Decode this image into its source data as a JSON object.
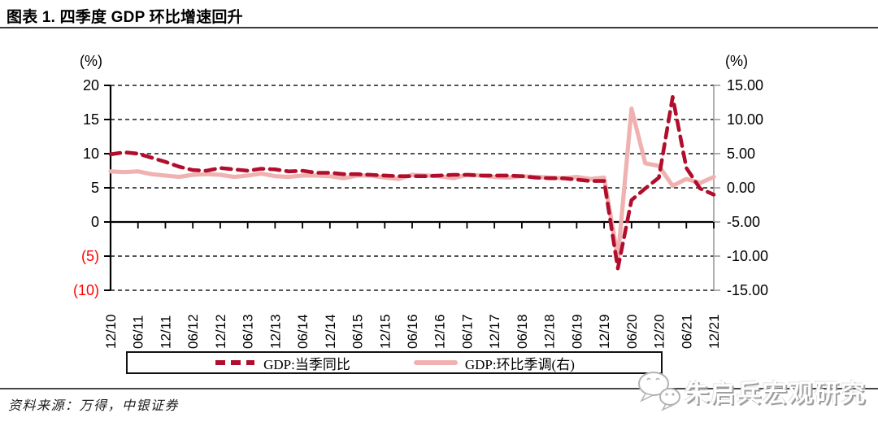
{
  "title": "图表 1. 四季度 GDP 环比增速回升",
  "legend": {
    "items": [
      {
        "label": "GDP:当季同比",
        "color": "#b00e2c",
        "style": "dashed"
      },
      {
        "label": "GDP:环比季调(右)",
        "color": "#f0b2b1",
        "style": "solid"
      }
    ]
  },
  "footer": {
    "source": "资料来源：万得，中银证券"
  },
  "watermark": {
    "text": "朱启兵宏观研究",
    "icon": "wechat-icon"
  },
  "colors": {
    "yoy_line": "#b00e2c",
    "qoq_line": "#f0b2b1",
    "negative_tick": "#ff0000",
    "grid": "#1a1a1a",
    "right_axis": "#9b9b9b"
  },
  "chart_data": {
    "type": "line",
    "title": "图表 1. 四季度 GDP 环比增速回升",
    "x_labels": [
      "12/10",
      "06/11",
      "12/11",
      "06/12",
      "12/12",
      "06/13",
      "12/13",
      "06/14",
      "12/14",
      "06/15",
      "12/15",
      "06/16",
      "12/16",
      "06/17",
      "12/17",
      "06/18",
      "12/18",
      "06/19",
      "12/19",
      "06/20",
      "12/20",
      "06/21",
      "12/21"
    ],
    "label_every": 2,
    "points_per_label_gap": "labels mark every 2nd quarterly observation, 45 quarterly points 2010Q4-2021Q4",
    "series": [
      {
        "name": "GDP:当季同比",
        "axis": "left",
        "style": "dashed",
        "color": "#b00e2c",
        "values": [
          9.9,
          10.2,
          10.0,
          9.4,
          8.8,
          8.1,
          7.6,
          7.5,
          7.9,
          7.7,
          7.5,
          7.8,
          7.7,
          7.4,
          7.5,
          7.2,
          7.2,
          7.0,
          7.0,
          6.9,
          6.8,
          6.7,
          6.7,
          6.7,
          6.8,
          6.9,
          6.9,
          6.8,
          6.8,
          6.8,
          6.7,
          6.5,
          6.4,
          6.4,
          6.2,
          6.0,
          6.0,
          -6.8,
          3.2,
          4.9,
          6.5,
          18.3,
          7.9,
          4.9,
          4.0
        ]
      },
      {
        "name": "GDP:环比季调(右)",
        "axis": "right",
        "style": "solid",
        "color": "#f0b2b1",
        "values": [
          2.4,
          2.3,
          2.4,
          2.0,
          1.8,
          1.6,
          1.9,
          2.0,
          1.9,
          1.6,
          1.8,
          2.1,
          1.7,
          1.6,
          1.8,
          1.8,
          1.7,
          1.4,
          1.8,
          1.8,
          1.5,
          1.3,
          1.9,
          1.8,
          1.7,
          1.4,
          1.9,
          1.8,
          1.6,
          1.5,
          1.7,
          1.6,
          1.5,
          1.4,
          1.6,
          1.3,
          1.5,
          -10.3,
          11.6,
          3.6,
          3.2,
          0.3,
          1.3,
          0.7,
          1.6
        ]
      }
    ],
    "left_axis": {
      "unit": "(%)",
      "range": [
        -10,
        20
      ],
      "ticks": [
        20,
        15,
        10,
        5,
        0,
        -5,
        -10
      ],
      "tick_labels": [
        "20",
        "15",
        "10",
        "5",
        "0",
        "(5)",
        "(10)"
      ],
      "negative_label_color": "#ff0000"
    },
    "right_axis": {
      "unit": "(%)",
      "range": [
        -15,
        15
      ],
      "ticks": [
        15,
        10,
        5,
        0,
        -5,
        -10,
        -15
      ],
      "tick_labels": [
        "15.00",
        "10.00",
        "5.00",
        "0.00",
        "-5.00",
        "-10.00",
        "-15.00"
      ]
    },
    "grid": "horizontal-dashed",
    "legend_position": "bottom-boxed"
  }
}
